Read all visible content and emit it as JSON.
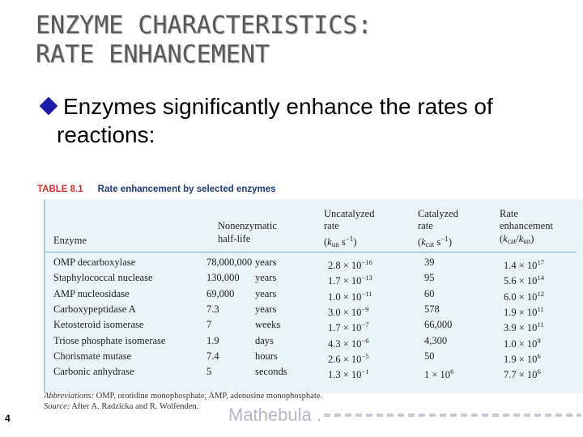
{
  "slide": {
    "title_line1": "ENZYME CHARACTERISTICS:",
    "title_line2": "RATE ENHANCEMENT",
    "bullet_line1": "Enzymes significantly enhance the rates of",
    "bullet_line2": "reactions:",
    "page_number": "4",
    "overlay_text": "Mathebula ."
  },
  "table": {
    "label": "TABLE 8.1",
    "title": "Rate enhancement by selected enzymes",
    "headers": {
      "enzyme": "Enzyme",
      "halflife_1": "Nonenzymatic",
      "halflife_2": "half-life",
      "uncat_1": "Uncatalyzed",
      "uncat_2": "rate",
      "cat_1": "Catalyzed",
      "cat_2": "rate",
      "enh_1": "Rate",
      "enh_2": "enhancement"
    },
    "rows": [
      {
        "enzyme": "OMP decarboxylase",
        "halflife": "78,000,000",
        "unit": "years",
        "uncat_base": "2.8 × 10",
        "uncat_exp": "−16",
        "cat": "39",
        "enh_base": "1.4 × 10",
        "enh_exp": "17"
      },
      {
        "enzyme": "Staphylococcal nuclease",
        "halflife": "130,000",
        "unit": "years",
        "uncat_base": "1.7 × 10",
        "uncat_exp": "−13",
        "cat": "95",
        "enh_base": "5.6 × 10",
        "enh_exp": "14"
      },
      {
        "enzyme": "AMP nucleosidase",
        "halflife": "69,000",
        "unit": "years",
        "uncat_base": "1.0 × 10",
        "uncat_exp": "−11",
        "cat": "60",
        "enh_base": "6.0 × 10",
        "enh_exp": "12"
      },
      {
        "enzyme": "Carboxypeptidase A",
        "halflife": "7.3",
        "unit": "years",
        "uncat_base": "3.0 × 10",
        "uncat_exp": "−9",
        "cat": "578",
        "enh_base": "1.9 × 10",
        "enh_exp": "11"
      },
      {
        "enzyme": "Ketosteroid isomerase",
        "halflife": "7",
        "unit": "weeks",
        "uncat_base": "1.7 × 10",
        "uncat_exp": "−7",
        "cat": "66,000",
        "enh_base": "3.9 × 10",
        "enh_exp": "11"
      },
      {
        "enzyme": "Triose phosphate isomerase",
        "halflife": "1.9",
        "unit": "days",
        "uncat_base": "4.3 × 10",
        "uncat_exp": "−6",
        "cat": "4,300",
        "enh_base": "1.0 × 10",
        "enh_exp": "9"
      },
      {
        "enzyme": "Chorismate mutase",
        "halflife": "7.4",
        "unit": "hours",
        "uncat_base": "2.6 × 10",
        "uncat_exp": "−5",
        "cat": "50",
        "enh_base": "1.9 × 10",
        "enh_exp": "6"
      },
      {
        "enzyme": "Carbonic anhydrase",
        "halflife": "5",
        "unit": "seconds",
        "uncat_base": "1.3 × 10",
        "uncat_exp": "−1",
        "cat_base": "1 × 10",
        "cat_exp": "6",
        "enh_base": "7.7 × 10",
        "enh_exp": "6"
      }
    ],
    "footnote_abbr_label": "Abbreviations:",
    "footnote_abbr": "OMP, orotidine monophosphate; AMP, adenosine monophosphate.",
    "footnote_source_label": "Source:",
    "footnote_source": "After A. Radzicka and R. Wolfenden."
  }
}
